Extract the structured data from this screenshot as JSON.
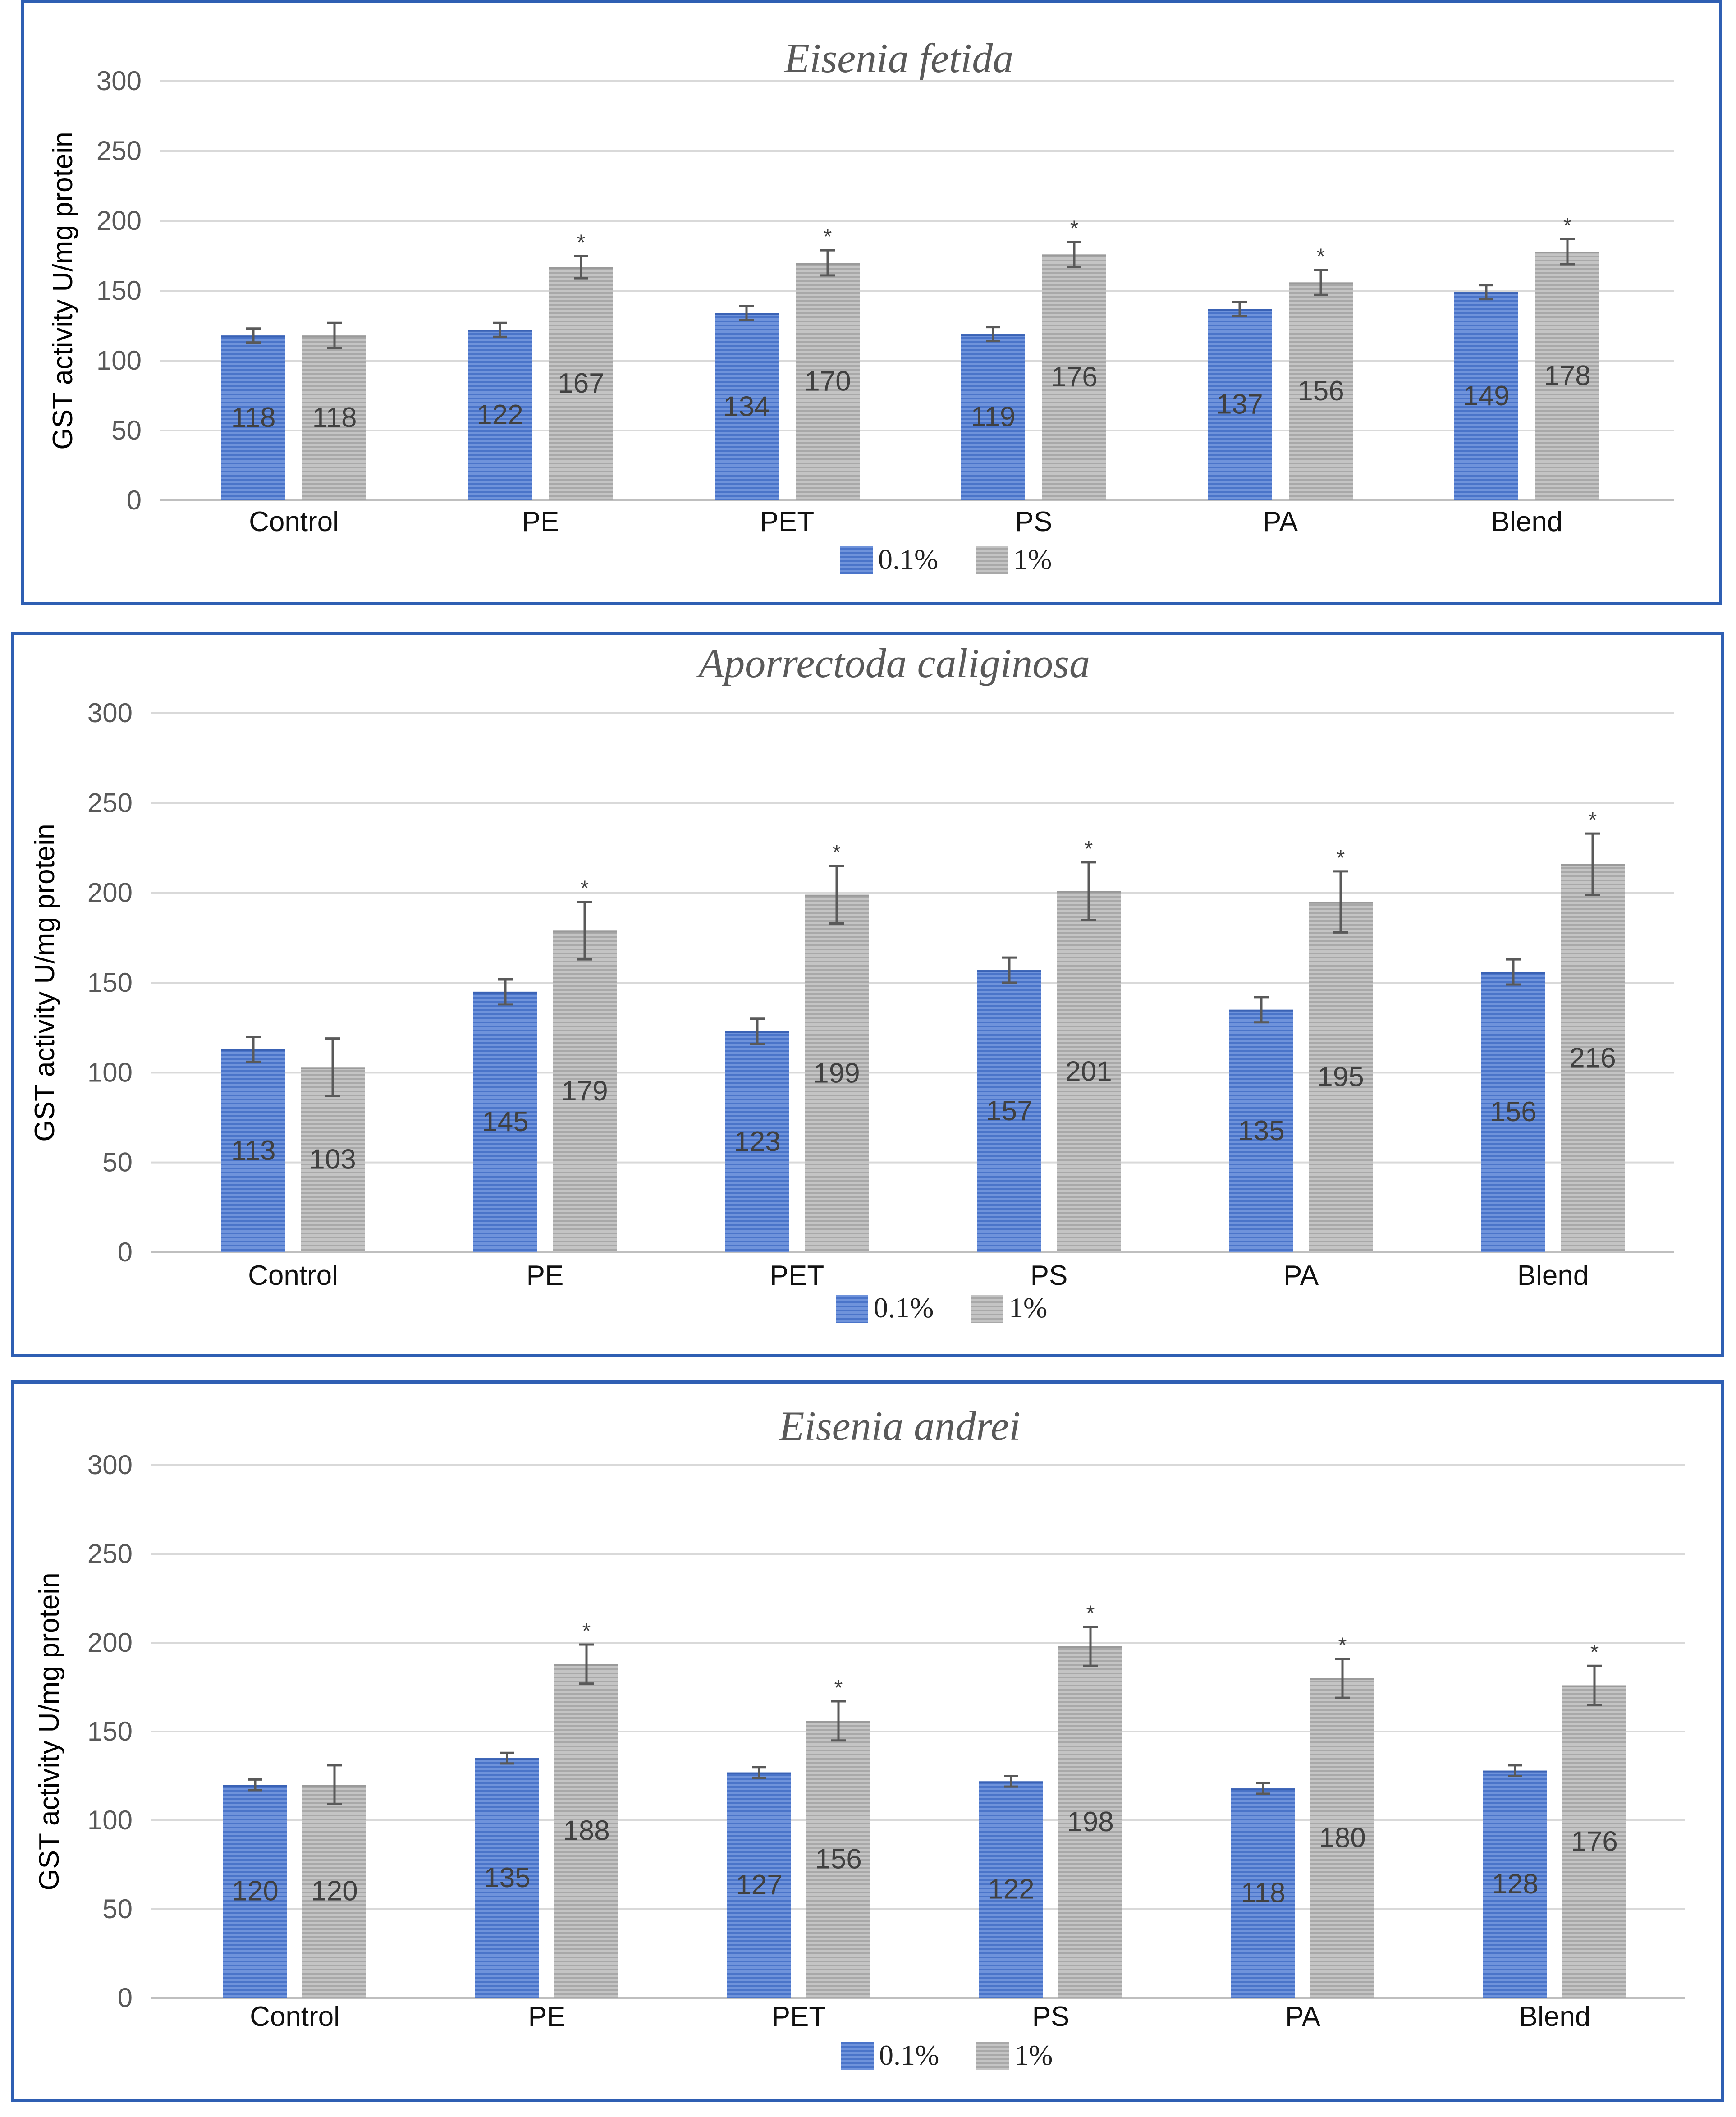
{
  "colors": {
    "series_0.1": "#4a74c9",
    "series_1": "#a8a8a8",
    "frame": "#2f5fb3",
    "grid": "#d9d9d9",
    "error_bar": "#595959"
  },
  "legend": {
    "items": [
      "0.1%",
      "1%"
    ]
  },
  "chart_data": [
    {
      "type": "bar",
      "title": "Eisenia fetida",
      "ylabel": "GST activity U/mg protein",
      "ylim": [
        0,
        300
      ],
      "yticks": [
        "0",
        "50",
        "100",
        "150",
        "200",
        "250",
        "300"
      ],
      "categories": [
        "Control",
        "PE",
        "PET",
        "PS",
        "PA",
        "Blend"
      ],
      "series": [
        {
          "name": "0.1%",
          "values": [
            118,
            122,
            134,
            119,
            137,
            149
          ],
          "errors": [
            5,
            5,
            5,
            5,
            5,
            5
          ],
          "labels": [
            "118",
            "122",
            "134",
            "119",
            "137",
            "149"
          ]
        },
        {
          "name": "1%",
          "values": [
            118,
            167,
            170,
            176,
            156,
            178
          ],
          "errors": [
            9,
            8,
            9,
            9,
            9,
            9
          ],
          "labels": [
            "118",
            "167",
            "170",
            "176",
            "156",
            "178"
          ],
          "significance": [
            "",
            "*",
            "*",
            "*",
            "*",
            "*"
          ]
        }
      ],
      "grid": true,
      "legend_position": "bottom"
    },
    {
      "type": "bar",
      "title": "Aporrectoda caliginosa",
      "ylabel": "GST activity U/mg protein",
      "ylim": [
        0,
        300
      ],
      "yticks": [
        "0",
        "50",
        "100",
        "150",
        "200",
        "250",
        "300"
      ],
      "categories": [
        "Control",
        "PE",
        "PET",
        "PS",
        "PA",
        "Blend"
      ],
      "series": [
        {
          "name": "0.1%",
          "values": [
            113,
            145,
            123,
            157,
            135,
            156
          ],
          "errors": [
            7,
            7,
            7,
            7,
            7,
            7
          ],
          "labels": [
            "113",
            "145",
            "123",
            "157",
            "135",
            "156"
          ]
        },
        {
          "name": "1%",
          "values": [
            103,
            179,
            199,
            201,
            195,
            216
          ],
          "errors": [
            16,
            16,
            16,
            16,
            17,
            17
          ],
          "labels": [
            "103",
            "179",
            "199",
            "201",
            "195",
            "216"
          ],
          "significance": [
            "",
            "*",
            "*",
            "*",
            "*",
            "*"
          ]
        }
      ],
      "grid": true,
      "legend_position": "bottom"
    },
    {
      "type": "bar",
      "title": "Eisenia andrei",
      "ylabel": "GST activity U/mg protein",
      "ylim": [
        0,
        300
      ],
      "yticks": [
        "0",
        "50",
        "100",
        "150",
        "200",
        "250",
        "300"
      ],
      "categories": [
        "Control",
        "PE",
        "PET",
        "PS",
        "PA",
        "Blend"
      ],
      "series": [
        {
          "name": "0.1%",
          "values": [
            120,
            135,
            127,
            122,
            118,
            128
          ],
          "errors": [
            3,
            3,
            3,
            3,
            3,
            3
          ],
          "labels": [
            "120",
            "135",
            "127",
            "122",
            "118",
            "128"
          ]
        },
        {
          "name": "1%",
          "values": [
            120,
            188,
            156,
            198,
            180,
            176
          ],
          "errors": [
            11,
            11,
            11,
            11,
            11,
            11
          ],
          "labels": [
            "120",
            "188",
            "156",
            "198",
            "180",
            "176"
          ],
          "significance": [
            "",
            "*",
            "*",
            "*",
            "*",
            "*"
          ]
        }
      ],
      "grid": true,
      "legend_position": "bottom"
    }
  ]
}
